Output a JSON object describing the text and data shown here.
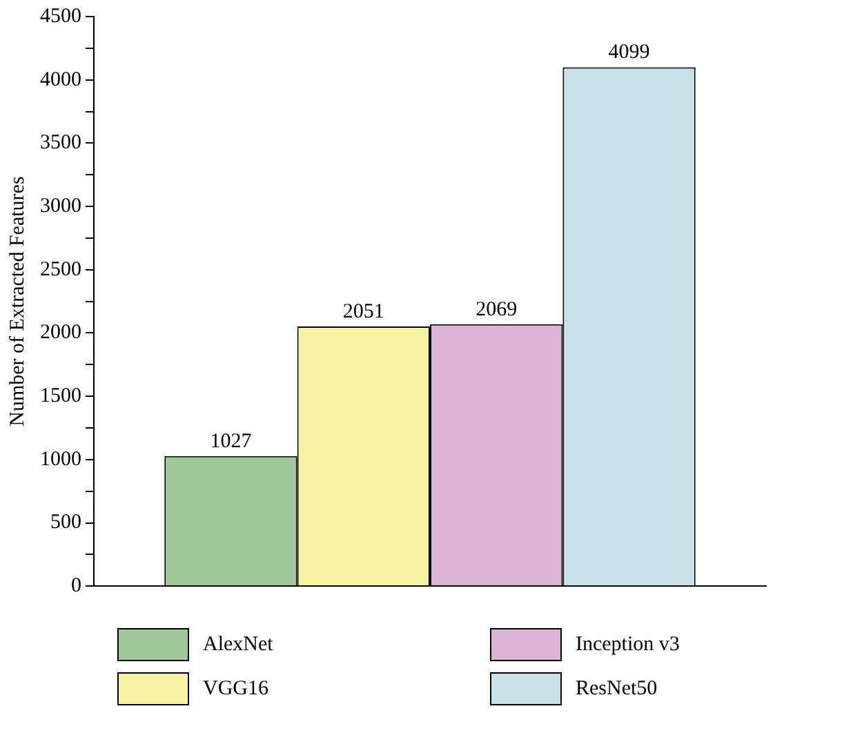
{
  "chart_data": {
    "type": "bar",
    "ylabel": "Number of Extracted Features",
    "categories": [
      null
    ],
    "series": [
      {
        "name": "AlexNet",
        "color": "#a0c899",
        "values": [
          1027
        ]
      },
      {
        "name": "VGG16",
        "color": "#f7f2a1",
        "values": [
          2051
        ]
      },
      {
        "name": "Inception v3",
        "color": "#dcb4d5",
        "values": [
          2069
        ]
      },
      {
        "name": "ResNet50",
        "color": "#c6e2e8",
        "values": [
          4099
        ]
      }
    ],
    "ylim": [
      0,
      4500
    ],
    "yticks": [
      0,
      {
        "value": 250,
        "label": null
      },
      500,
      {
        "value": 750,
        "label": null
      },
      1000,
      {
        "value": 1250,
        "label": null
      },
      1500,
      {
        "value": 1750,
        "label": null
      },
      2000,
      {
        "value": 2250,
        "label": null
      },
      2500,
      {
        "value": 2750,
        "label": null
      },
      3000,
      {
        "value": 3250,
        "label": null
      },
      3500,
      {
        "value": 3750,
        "label": null
      },
      4000,
      {
        "value": 4250,
        "label": null
      },
      4500
    ],
    "grid": false,
    "legend": "bottom",
    "data_labels": true
  }
}
